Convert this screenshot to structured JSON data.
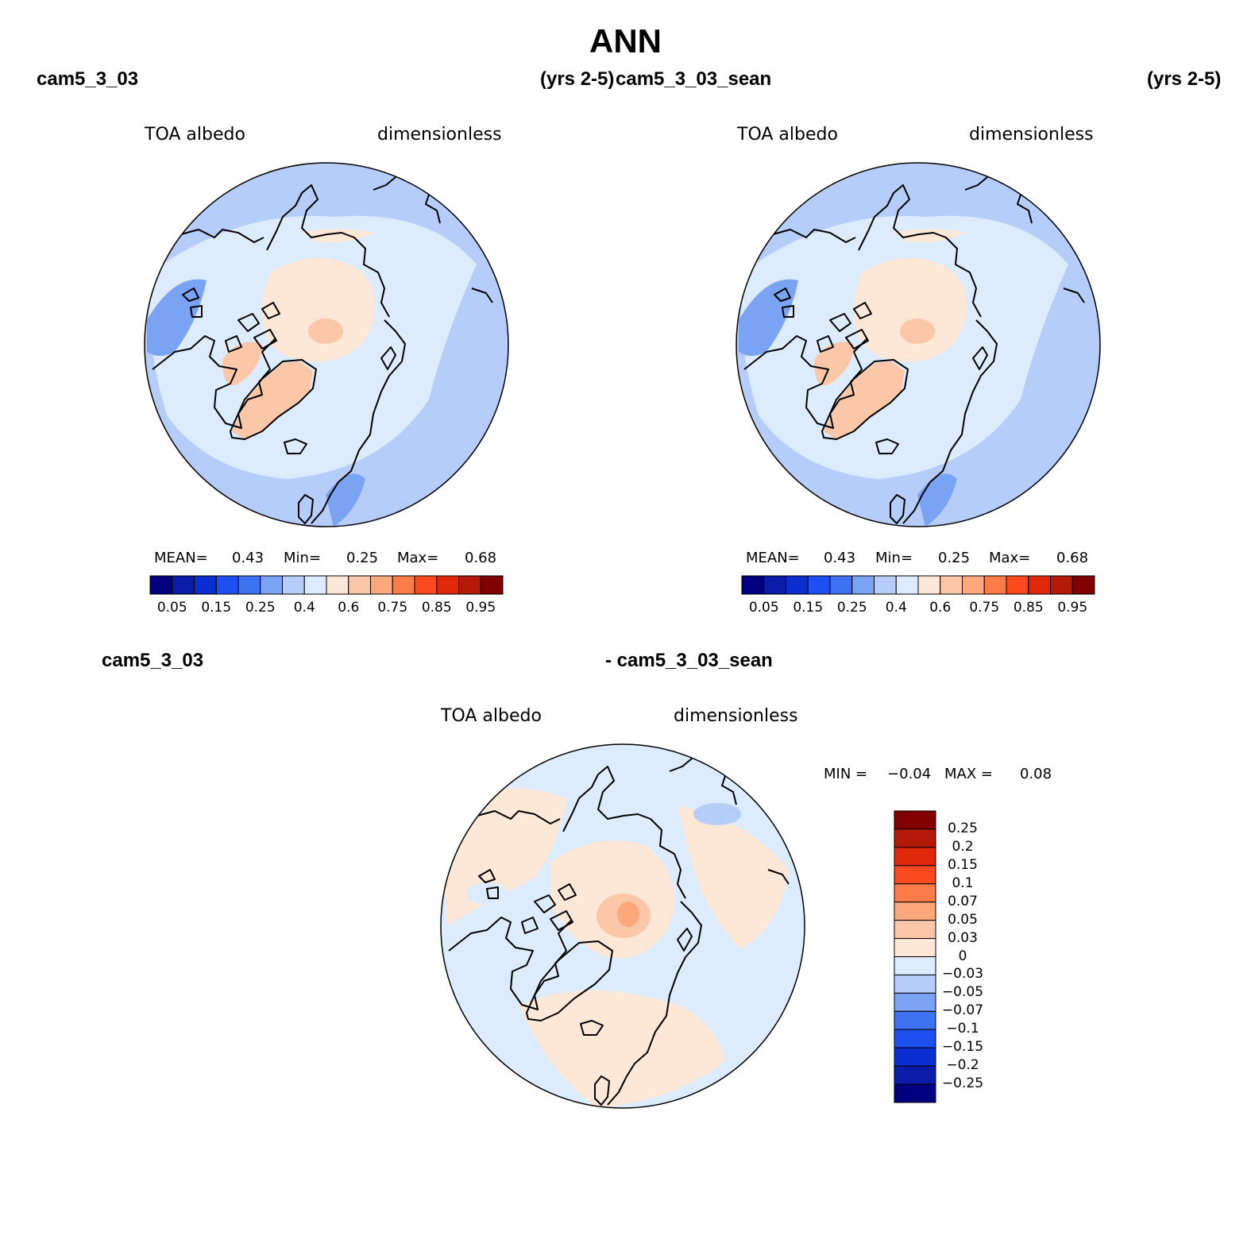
{
  "main_title": "ANN",
  "panel1": {
    "case_name": "cam5_3_03",
    "years": "(yrs 2-5)",
    "variable": "TOA albedo",
    "units": "dimensionless",
    "mean_label": "MEAN=",
    "mean_value": "0.43",
    "min_label": "Min=",
    "min_value": "0.25",
    "max_label": "Max=",
    "max_value": "0.68"
  },
  "panel2": {
    "case_name": "cam5_3_03_sean",
    "years": "(yrs 2-5)",
    "variable": "TOA albedo",
    "units": "dimensionless",
    "mean_label": "MEAN=",
    "mean_value": "0.43",
    "min_label": "Min=",
    "min_value": "0.25",
    "max_label": "Max=",
    "max_value": "0.68"
  },
  "panel3": {
    "case_left": "cam5_3_03",
    "case_right": "- cam5_3_03_sean",
    "variable": "TOA albedo",
    "units": "dimensionless",
    "min_label": "MIN =",
    "min_value": "−0.04",
    "max_label": "MAX =",
    "max_value": "0.08"
  },
  "colorbar_main": {
    "tick_labels": [
      "0.05",
      "0.15",
      "0.25",
      "0.4",
      "0.6",
      "0.75",
      "0.85",
      "0.95"
    ],
    "colors": [
      "#000080",
      "#0a1ca8",
      "#0a2ed0",
      "#1e4ff0",
      "#3f72f2",
      "#7ba3f4",
      "#b5cdf8",
      "#ddecfc",
      "#fde7d6",
      "#fcc7a8",
      "#fca77c",
      "#fc7c47",
      "#fb4b1e",
      "#e0280a",
      "#b31b08",
      "#800000"
    ]
  },
  "colorbar_diff": {
    "tick_labels": [
      "0.25",
      "0.2",
      "0.15",
      "0.1",
      "0.07",
      "0.05",
      "0.03",
      "0",
      "−0.03",
      "−0.05",
      "−0.07",
      "−0.1",
      "−0.15",
      "−0.2",
      "−0.25"
    ],
    "colors": [
      "#800000",
      "#b31b08",
      "#e0280a",
      "#fb4b1e",
      "#fc7c47",
      "#fca77c",
      "#fcc7a8",
      "#fde7d6",
      "#ddecfc",
      "#b5cdf8",
      "#7ba3f4",
      "#3f72f2",
      "#1e4ff0",
      "#0a2ed0",
      "#0a1ca8",
      "#000080"
    ]
  },
  "map_colors": {
    "ocean": "#b5cdf8",
    "light_blue": "#ddecfc",
    "mid_blue": "#7ba3f4",
    "peach": "#fde7d6",
    "salmon": "#fcc7a8",
    "orange": "#fca77c",
    "coast": "#000000"
  }
}
